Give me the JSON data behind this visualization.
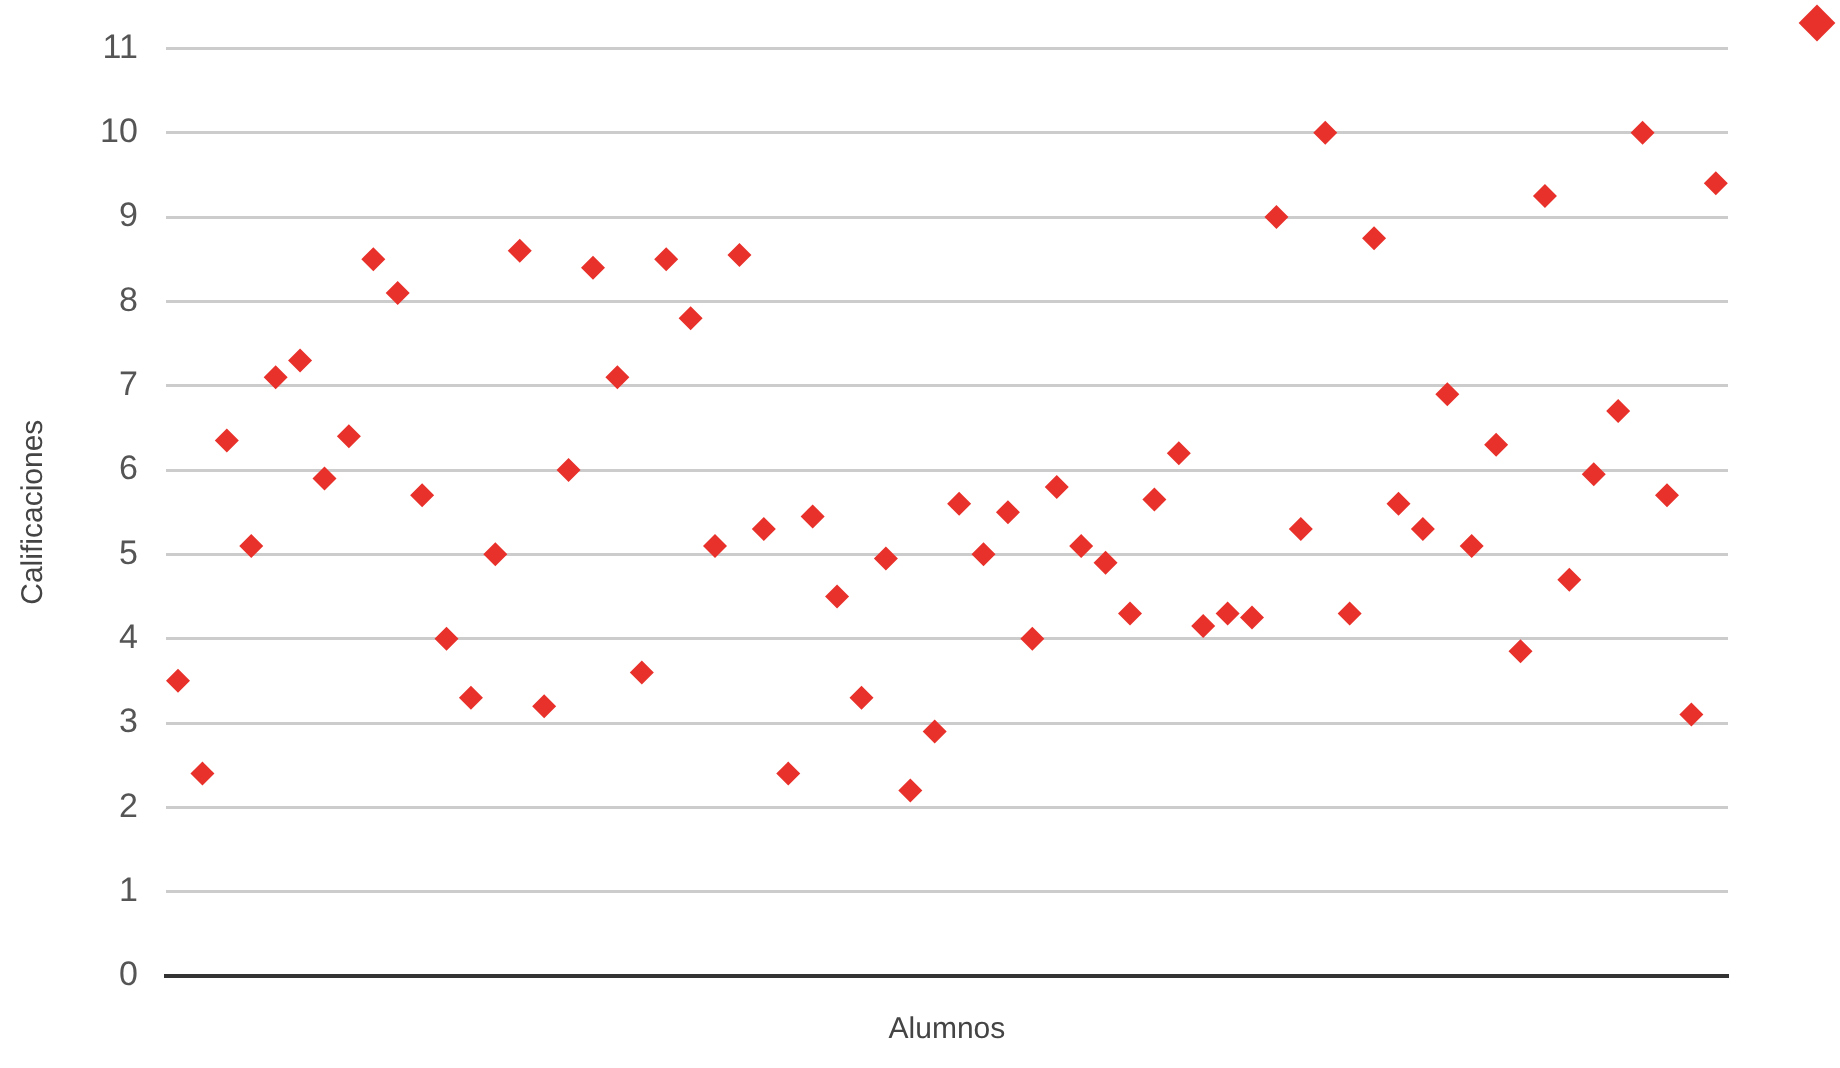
{
  "chart_data": {
    "type": "scatter",
    "xlabel": "Alumnos",
    "ylabel": "Calificaciones",
    "categories": [
      null,
      null,
      null,
      null,
      null,
      null,
      null,
      null,
      null,
      null,
      null,
      null,
      null,
      null,
      null,
      null,
      null,
      null,
      null,
      null,
      null,
      null,
      null,
      null,
      null,
      null,
      null,
      null,
      null,
      null,
      null,
      null,
      null,
      null,
      null,
      null,
      null,
      null,
      null,
      null,
      null,
      null,
      null,
      null,
      null,
      null,
      null,
      null,
      null,
      null,
      null,
      null,
      null,
      null,
      null,
      null,
      null,
      null,
      null,
      null,
      null,
      null,
      null,
      null
    ],
    "series": [
      {
        "color": "#e8312a",
        "values": [
          3.5,
          2.4,
          6.35,
          5.1,
          7.1,
          7.3,
          5.9,
          6.4,
          8.5,
          8.1,
          5.7,
          4.0,
          3.3,
          5.0,
          8.6,
          3.2,
          6.0,
          8.4,
          7.1,
          3.6,
          8.5,
          7.8,
          5.1,
          8.55,
          5.3,
          2.4,
          5.45,
          4.5,
          3.3,
          4.95,
          2.2,
          2.9,
          5.6,
          5.0,
          5.5,
          4.0,
          5.8,
          5.1,
          4.9,
          4.3,
          5.65,
          6.2,
          4.15,
          4.3,
          4.25,
          9.0,
          5.3,
          10.0,
          4.3,
          8.75,
          5.6,
          5.3,
          6.9,
          5.1,
          6.3,
          3.85,
          9.25,
          4.7,
          5.95,
          6.7,
          10.0,
          5.7,
          3.1,
          9.4
        ]
      }
    ],
    "ylim": [
      0,
      11
    ],
    "yticks": [
      0,
      1,
      2,
      3,
      4,
      5,
      6,
      7,
      8,
      9,
      10,
      11
    ],
    "grid": "y",
    "marker": "diamond",
    "tick_labels": "y"
  }
}
